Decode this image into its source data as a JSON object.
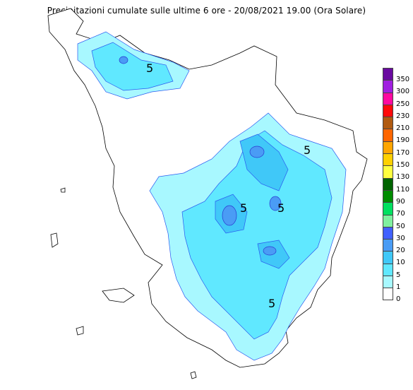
{
  "title": "Precipitazioni cumulate sulle ultime 6 ore - 20/08/2021 19.00 (Ora Solare)",
  "legend": {
    "items": [
      {
        "value": "350",
        "color": "#6a0aa0"
      },
      {
        "value": "300",
        "color": "#a020e0"
      },
      {
        "value": "250",
        "color": "#ff0aa0"
      },
      {
        "value": "230",
        "color": "#ff0a0a"
      },
      {
        "value": "210",
        "color": "#b05a10"
      },
      {
        "value": "190",
        "color": "#ff6600"
      },
      {
        "value": "170",
        "color": "#ffa500"
      },
      {
        "value": "150",
        "color": "#ffd000"
      },
      {
        "value": "130",
        "color": "#ffff40"
      },
      {
        "value": "110",
        "color": "#006400"
      },
      {
        "value": "90",
        "color": "#008c00"
      },
      {
        "value": "70",
        "color": "#00e060"
      },
      {
        "value": "50",
        "color": "#80f0a0"
      },
      {
        "value": "30",
        "color": "#4060ff"
      },
      {
        "value": "20",
        "color": "#4a9cf5"
      },
      {
        "value": "10",
        "color": "#40c8f8"
      },
      {
        "value": "5",
        "color": "#60e8ff"
      },
      {
        "value": "1",
        "color": "#a8f8ff"
      },
      {
        "value": "0",
        "color": "#ffffff"
      }
    ]
  },
  "map": {
    "contour_labels": [
      "5",
      "5",
      "5",
      "5",
      "5"
    ]
  }
}
